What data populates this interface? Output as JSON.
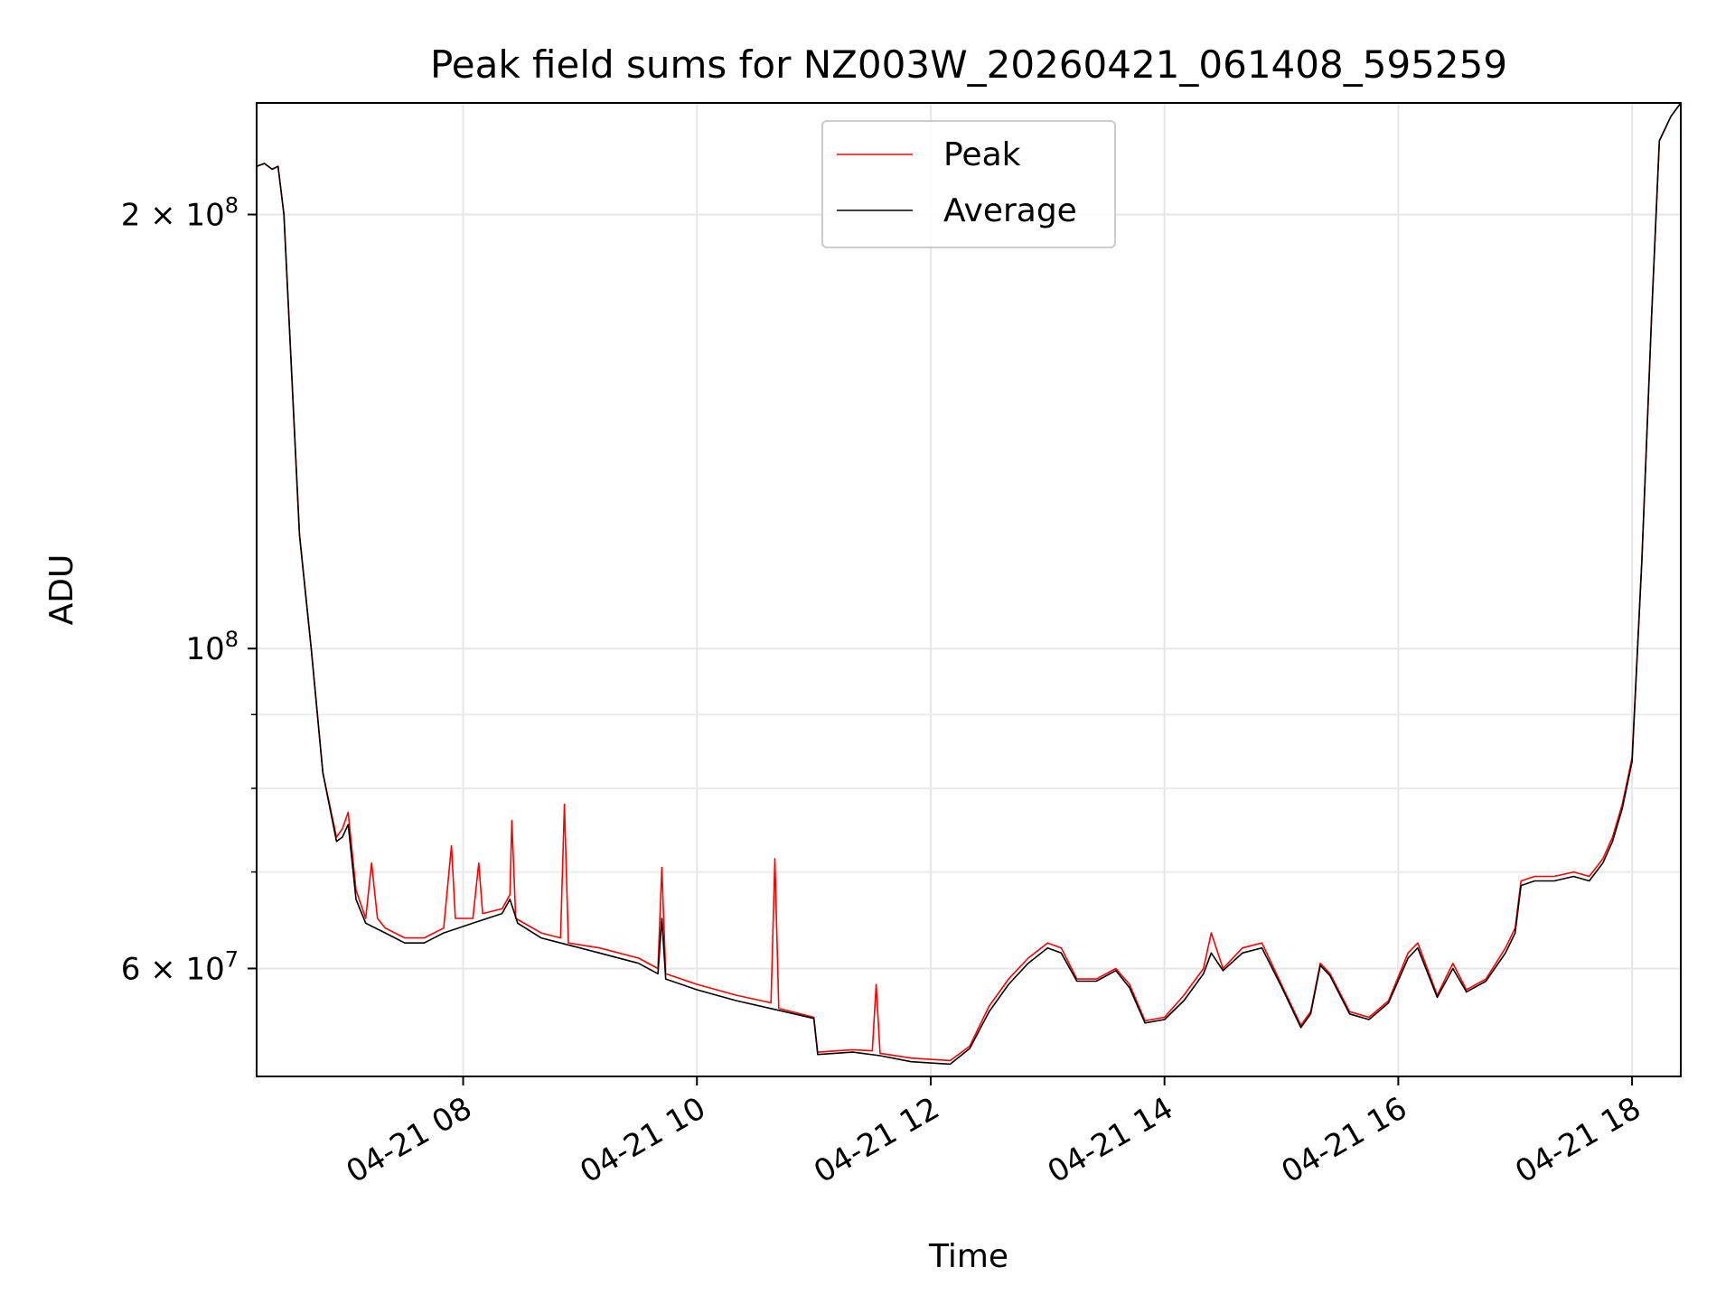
{
  "chart_data": {
    "type": "line",
    "title": "Peak field sums for NZ003W_20260421_061408_595259",
    "xlabel": "Time",
    "ylabel": "ADU",
    "yscale": "log",
    "ylim": [
      50500000,
      239000000
    ],
    "xlim": [
      "2026-04-21 06:14",
      "2026-04-21 18:25"
    ],
    "grid": true,
    "legend_position": "top-center",
    "x_ticks": [
      {
        "t": "2026-04-21 08:00",
        "label": "04-21 08"
      },
      {
        "t": "2026-04-21 10:00",
        "label": "04-21 10"
      },
      {
        "t": "2026-04-21 12:00",
        "label": "04-21 12"
      },
      {
        "t": "2026-04-21 14:00",
        "label": "04-21 14"
      },
      {
        "t": "2026-04-21 16:00",
        "label": "04-21 16"
      },
      {
        "t": "2026-04-21 18:00",
        "label": "04-21 18"
      }
    ],
    "y_major_ticks": [
      {
        "v": 60000000,
        "base": "6",
        "exp": "7"
      },
      {
        "v": 100000000,
        "base": "",
        "exp": "8"
      },
      {
        "v": 200000000,
        "base": "2",
        "exp": "8"
      }
    ],
    "y_minor_ticks": [
      70000000,
      80000000,
      90000000
    ],
    "series": [
      {
        "name": "Peak",
        "color": "#ff0000",
        "points": [
          [
            "2026-04-21 06:14",
            216000000
          ],
          [
            "2026-04-21 06:18",
            217000000
          ],
          [
            "2026-04-21 06:22",
            215000000
          ],
          [
            "2026-04-21 06:25",
            216000000
          ],
          [
            "2026-04-21 06:28",
            200000000
          ],
          [
            "2026-04-21 06:32",
            155000000
          ],
          [
            "2026-04-21 06:36",
            120000000
          ],
          [
            "2026-04-21 06:42",
            100000000
          ],
          [
            "2026-04-21 06:48",
            82000000
          ],
          [
            "2026-04-21 06:55",
            74000000
          ],
          [
            "2026-04-21 06:58",
            75000000
          ],
          [
            "2026-04-21 07:01",
            77000000
          ],
          [
            "2026-04-21 07:05",
            68000000
          ],
          [
            "2026-04-21 07:10",
            65000000
          ],
          [
            "2026-04-21 07:13",
            71000000
          ],
          [
            "2026-04-21 07:16",
            65000000
          ],
          [
            "2026-04-21 07:20",
            64000000
          ],
          [
            "2026-04-21 07:30",
            63000000
          ],
          [
            "2026-04-21 07:40",
            63000000
          ],
          [
            "2026-04-21 07:50",
            64000000
          ],
          [
            "2026-04-21 07:54",
            73000000
          ],
          [
            "2026-04-21 07:56",
            65000000
          ],
          [
            "2026-04-21 08:05",
            65000000
          ],
          [
            "2026-04-21 08:08",
            71000000
          ],
          [
            "2026-04-21 08:10",
            65500000
          ],
          [
            "2026-04-21 08:20",
            66000000
          ],
          [
            "2026-04-21 08:24",
            67500000
          ],
          [
            "2026-04-21 08:25",
            76000000
          ],
          [
            "2026-04-21 08:27",
            65000000
          ],
          [
            "2026-04-21 08:40",
            63500000
          ],
          [
            "2026-04-21 08:50",
            63000000
          ],
          [
            "2026-04-21 08:52",
            78000000
          ],
          [
            "2026-04-21 08:54",
            62500000
          ],
          [
            "2026-04-21 09:10",
            62000000
          ],
          [
            "2026-04-21 09:30",
            61000000
          ],
          [
            "2026-04-21 09:40",
            60000000
          ],
          [
            "2026-04-21 09:42",
            70500000
          ],
          [
            "2026-04-21 09:44",
            59500000
          ],
          [
            "2026-04-21 10:00",
            58500000
          ],
          [
            "2026-04-21 10:10",
            58000000
          ],
          [
            "2026-04-21 10:20",
            57500000
          ],
          [
            "2026-04-21 10:38",
            56800000
          ],
          [
            "2026-04-21 10:40",
            71500000
          ],
          [
            "2026-04-21 10:42",
            56300000
          ],
          [
            "2026-04-21 11:00",
            55500000
          ],
          [
            "2026-04-21 11:02",
            52500000
          ],
          [
            "2026-04-21 11:20",
            52700000
          ],
          [
            "2026-04-21 11:30",
            52600000
          ],
          [
            "2026-04-21 11:32",
            58500000
          ],
          [
            "2026-04-21 11:34",
            52400000
          ],
          [
            "2026-04-21 11:50",
            52000000
          ],
          [
            "2026-04-21 12:10",
            51800000
          ],
          [
            "2026-04-21 12:20",
            53000000
          ],
          [
            "2026-04-21 12:30",
            56500000
          ],
          [
            "2026-04-21 12:40",
            59000000
          ],
          [
            "2026-04-21 12:50",
            61000000
          ],
          [
            "2026-04-21 13:00",
            62500000
          ],
          [
            "2026-04-21 13:07",
            62000000
          ],
          [
            "2026-04-21 13:15",
            59000000
          ],
          [
            "2026-04-21 13:25",
            59000000
          ],
          [
            "2026-04-21 13:35",
            60000000
          ],
          [
            "2026-04-21 13:42",
            58500000
          ],
          [
            "2026-04-21 13:50",
            55200000
          ],
          [
            "2026-04-21 14:00",
            55500000
          ],
          [
            "2026-04-21 14:10",
            57500000
          ],
          [
            "2026-04-21 14:20",
            60000000
          ],
          [
            "2026-04-21 14:24",
            63500000
          ],
          [
            "2026-04-21 14:30",
            60000000
          ],
          [
            "2026-04-21 14:40",
            62000000
          ],
          [
            "2026-04-21 14:50",
            62500000
          ],
          [
            "2026-04-21 15:00",
            58500000
          ],
          [
            "2026-04-21 15:10",
            54800000
          ],
          [
            "2026-04-21 15:15",
            56000000
          ],
          [
            "2026-04-21 15:20",
            60500000
          ],
          [
            "2026-04-21 15:25",
            59500000
          ],
          [
            "2026-04-21 15:35",
            56000000
          ],
          [
            "2026-04-21 15:45",
            55500000
          ],
          [
            "2026-04-21 15:55",
            57000000
          ],
          [
            "2026-04-21 16:05",
            61500000
          ],
          [
            "2026-04-21 16:10",
            62500000
          ],
          [
            "2026-04-21 16:20",
            57500000
          ],
          [
            "2026-04-21 16:28",
            60500000
          ],
          [
            "2026-04-21 16:35",
            58000000
          ],
          [
            "2026-04-21 16:45",
            59000000
          ],
          [
            "2026-04-21 16:55",
            62000000
          ],
          [
            "2026-04-21 17:00",
            64000000
          ],
          [
            "2026-04-21 17:03",
            69000000
          ],
          [
            "2026-04-21 17:10",
            69500000
          ],
          [
            "2026-04-21 17:20",
            69500000
          ],
          [
            "2026-04-21 17:30",
            70000000
          ],
          [
            "2026-04-21 17:38",
            69500000
          ],
          [
            "2026-04-21 17:45",
            71500000
          ],
          [
            "2026-04-21 17:50",
            74000000
          ],
          [
            "2026-04-21 17:55",
            78000000
          ],
          [
            "2026-04-21 18:00",
            84000000
          ],
          [
            "2026-04-21 18:05",
            115000000
          ],
          [
            "2026-04-21 18:10",
            170000000
          ],
          [
            "2026-04-21 18:14",
            225000000
          ],
          [
            "2026-04-21 18:20",
            234000000
          ],
          [
            "2026-04-21 18:25",
            239000000
          ]
        ]
      },
      {
        "name": "Average",
        "color": "#000000",
        "points": [
          [
            "2026-04-21 06:14",
            216000000
          ],
          [
            "2026-04-21 06:18",
            217000000
          ],
          [
            "2026-04-21 06:22",
            215000000
          ],
          [
            "2026-04-21 06:25",
            216000000
          ],
          [
            "2026-04-21 06:28",
            200000000
          ],
          [
            "2026-04-21 06:32",
            155000000
          ],
          [
            "2026-04-21 06:36",
            120000000
          ],
          [
            "2026-04-21 06:42",
            100000000
          ],
          [
            "2026-04-21 06:48",
            82000000
          ],
          [
            "2026-04-21 06:55",
            73500000
          ],
          [
            "2026-04-21 06:58",
            74000000
          ],
          [
            "2026-04-21 07:01",
            75500000
          ],
          [
            "2026-04-21 07:05",
            67000000
          ],
          [
            "2026-04-21 07:10",
            64500000
          ],
          [
            "2026-04-21 07:20",
            63500000
          ],
          [
            "2026-04-21 07:30",
            62500000
          ],
          [
            "2026-04-21 07:40",
            62500000
          ],
          [
            "2026-04-21 07:50",
            63500000
          ],
          [
            "2026-04-21 08:05",
            64500000
          ],
          [
            "2026-04-21 08:20",
            65500000
          ],
          [
            "2026-04-21 08:24",
            67000000
          ],
          [
            "2026-04-21 08:28",
            64500000
          ],
          [
            "2026-04-21 08:40",
            63000000
          ],
          [
            "2026-04-21 08:50",
            62500000
          ],
          [
            "2026-04-21 09:10",
            61500000
          ],
          [
            "2026-04-21 09:30",
            60500000
          ],
          [
            "2026-04-21 09:40",
            59500000
          ],
          [
            "2026-04-21 09:42",
            65000000
          ],
          [
            "2026-04-21 09:44",
            59000000
          ],
          [
            "2026-04-21 10:00",
            58000000
          ],
          [
            "2026-04-21 10:10",
            57500000
          ],
          [
            "2026-04-21 10:20",
            57000000
          ],
          [
            "2026-04-21 10:40",
            56200000
          ],
          [
            "2026-04-21 11:00",
            55400000
          ],
          [
            "2026-04-21 11:02",
            52300000
          ],
          [
            "2026-04-21 11:20",
            52500000
          ],
          [
            "2026-04-21 11:34",
            52200000
          ],
          [
            "2026-04-21 11:50",
            51700000
          ],
          [
            "2026-04-21 12:10",
            51500000
          ],
          [
            "2026-04-21 12:20",
            52800000
          ],
          [
            "2026-04-21 12:30",
            56000000
          ],
          [
            "2026-04-21 12:40",
            58500000
          ],
          [
            "2026-04-21 12:50",
            60500000
          ],
          [
            "2026-04-21 13:00",
            62000000
          ],
          [
            "2026-04-21 13:07",
            61500000
          ],
          [
            "2026-04-21 13:15",
            58800000
          ],
          [
            "2026-04-21 13:25",
            58800000
          ],
          [
            "2026-04-21 13:35",
            59800000
          ],
          [
            "2026-04-21 13:42",
            58200000
          ],
          [
            "2026-04-21 13:50",
            55000000
          ],
          [
            "2026-04-21 14:00",
            55300000
          ],
          [
            "2026-04-21 14:10",
            57000000
          ],
          [
            "2026-04-21 14:20",
            59500000
          ],
          [
            "2026-04-21 14:24",
            61500000
          ],
          [
            "2026-04-21 14:30",
            59800000
          ],
          [
            "2026-04-21 14:40",
            61500000
          ],
          [
            "2026-04-21 14:50",
            62000000
          ],
          [
            "2026-04-21 15:00",
            58300000
          ],
          [
            "2026-04-21 15:10",
            54600000
          ],
          [
            "2026-04-21 15:15",
            55800000
          ],
          [
            "2026-04-21 15:20",
            60300000
          ],
          [
            "2026-04-21 15:25",
            59300000
          ],
          [
            "2026-04-21 15:35",
            55800000
          ],
          [
            "2026-04-21 15:45",
            55300000
          ],
          [
            "2026-04-21 15:55",
            56800000
          ],
          [
            "2026-04-21 16:05",
            61000000
          ],
          [
            "2026-04-21 16:10",
            62000000
          ],
          [
            "2026-04-21 16:20",
            57300000
          ],
          [
            "2026-04-21 16:28",
            60000000
          ],
          [
            "2026-04-21 16:35",
            57800000
          ],
          [
            "2026-04-21 16:45",
            58800000
          ],
          [
            "2026-04-21 16:55",
            61500000
          ],
          [
            "2026-04-21 17:00",
            63500000
          ],
          [
            "2026-04-21 17:03",
            68500000
          ],
          [
            "2026-04-21 17:10",
            69000000
          ],
          [
            "2026-04-21 17:20",
            69000000
          ],
          [
            "2026-04-21 17:30",
            69500000
          ],
          [
            "2026-04-21 17:38",
            69000000
          ],
          [
            "2026-04-21 17:45",
            71000000
          ],
          [
            "2026-04-21 17:50",
            73500000
          ],
          [
            "2026-04-21 17:55",
            77500000
          ],
          [
            "2026-04-21 18:00",
            83500000
          ],
          [
            "2026-04-21 18:05",
            115000000
          ],
          [
            "2026-04-21 18:10",
            170000000
          ],
          [
            "2026-04-21 18:14",
            225000000
          ],
          [
            "2026-04-21 18:20",
            234000000
          ],
          [
            "2026-04-21 18:25",
            239000000
          ]
        ]
      }
    ]
  }
}
